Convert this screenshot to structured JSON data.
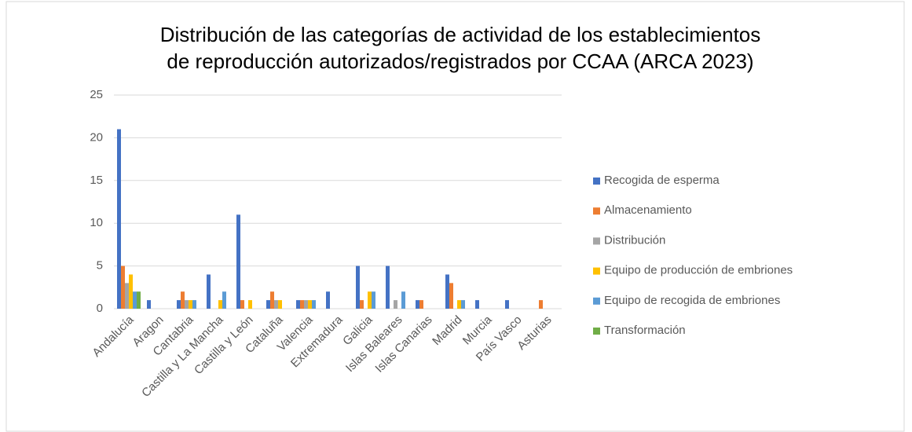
{
  "chart_data": {
    "type": "bar",
    "title": [
      "Distribución de las categorías de actividad de los establecimientos",
      "de reproducción autorizados/registrados por CCAA (ARCA 2023)"
    ],
    "categories": [
      "Andalucía",
      "Aragon",
      "Cantabria",
      "Castilla y La Mancha",
      "Castilla y León",
      "Cataluña",
      "Valencia",
      "Extremadura",
      "Galicia",
      "Islas Baleares",
      "Islas Canarias",
      "Madrid",
      "Murcia",
      "País Vasco",
      "Asturias"
    ],
    "series": [
      {
        "name": "Recogida de esperma",
        "color": "#4472c4",
        "values": [
          21,
          1,
          1,
          4,
          11,
          1,
          1,
          2,
          5,
          5,
          1,
          4,
          1,
          1,
          0
        ]
      },
      {
        "name": "Almacenamiento",
        "color": "#ed7d31",
        "values": [
          5,
          0,
          2,
          0,
          1,
          2,
          1,
          0,
          1,
          0,
          1,
          3,
          0,
          0,
          1
        ]
      },
      {
        "name": "Distribución",
        "color": "#a5a5a5",
        "values": [
          3,
          0,
          1,
          0,
          0,
          1,
          1,
          0,
          0,
          1,
          0,
          0,
          0,
          0,
          0
        ]
      },
      {
        "name": "Equipo de producción de embriones",
        "color": "#ffc000",
        "values": [
          4,
          0,
          1,
          1,
          1,
          1,
          1,
          0,
          2,
          0,
          0,
          1,
          0,
          0,
          0
        ]
      },
      {
        "name": "Equipo de recogida de embriones",
        "color": "#5b9bd5",
        "values": [
          2,
          0,
          1,
          2,
          0,
          0,
          1,
          0,
          2,
          2,
          0,
          1,
          0,
          0,
          0
        ]
      },
      {
        "name": "Transformación",
        "color": "#70ad47",
        "values": [
          2,
          0,
          0,
          0,
          0,
          0,
          0,
          0,
          0,
          0,
          0,
          0,
          0,
          0,
          0
        ]
      }
    ],
    "ylim": [
      0,
      25
    ],
    "yticks": [
      0,
      5,
      10,
      15,
      20,
      25
    ],
    "grid": true,
    "legend": "right"
  }
}
